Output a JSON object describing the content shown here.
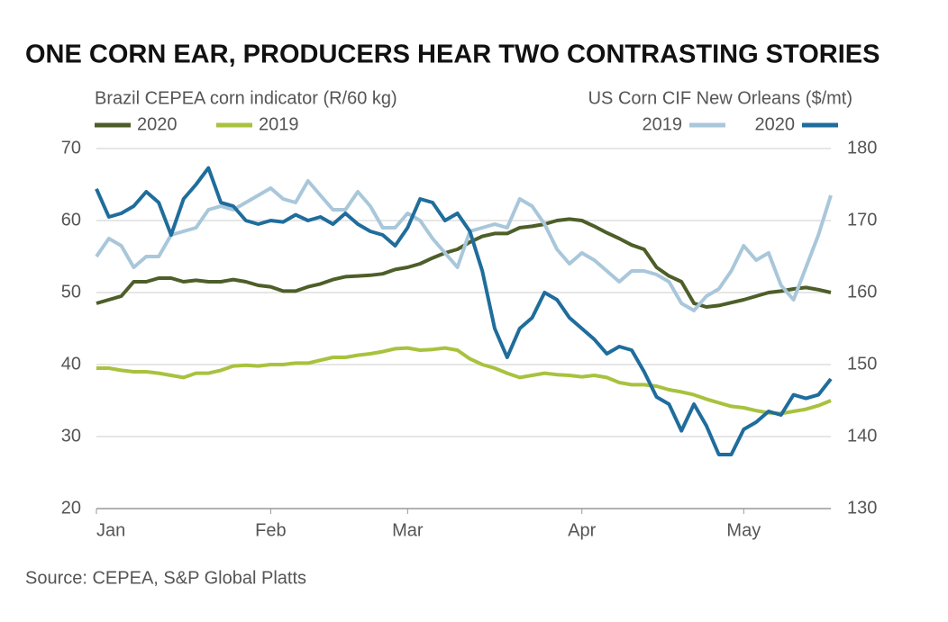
{
  "chart_data": {
    "type": "line",
    "title": "ONE CORN EAR, PRODUCERS HEAR TWO CONTRASTING STORIES",
    "ylabel": "Brazil CEPEA corn indicator (R/60 kg)",
    "y2label": "US Corn CIF New Orleans ($/mt)",
    "source": "Source: CEPEA, S&P Global Platts",
    "categories": [
      "Jan",
      null,
      null,
      null,
      null,
      null,
      null,
      null,
      null,
      null,
      null,
      null,
      null,
      null,
      "Feb",
      null,
      null,
      null,
      null,
      null,
      null,
      null,
      null,
      null,
      null,
      "Mar",
      null,
      null,
      null,
      null,
      null,
      null,
      null,
      null,
      null,
      null,
      null,
      null,
      null,
      "Apr",
      null,
      null,
      null,
      null,
      null,
      null,
      null,
      null,
      null,
      null,
      null,
      null,
      "May",
      null,
      null,
      null,
      null,
      null,
      null,
      null
    ],
    "ylim": [
      20,
      70
    ],
    "yticks": [
      20,
      30,
      40,
      50,
      60,
      70
    ],
    "y2lim": [
      130,
      180
    ],
    "y2ticks": [
      130,
      140,
      150,
      160,
      170,
      180
    ],
    "grid": true,
    "series": [
      {
        "name": "2020",
        "color": "#4d5e29",
        "values": [
          48.5,
          49,
          49.5,
          51.5,
          51.5,
          52,
          52,
          51.5,
          51.7,
          51.5,
          51.5,
          51.8,
          51.5,
          51,
          50.8,
          50.2,
          50.2,
          50.8,
          51.2,
          51.8,
          52.2,
          52.3,
          52.4,
          52.6,
          53.2,
          53.5,
          54,
          54.8,
          55.5,
          56,
          57,
          57.8,
          58.2,
          58.2,
          59,
          59.2,
          59.5,
          60,
          60.2,
          60,
          59.2,
          58.3,
          57.5,
          56.6,
          56,
          53.5,
          52.3,
          51.5,
          48.5,
          48,
          48.2,
          48.6,
          49,
          49.5,
          50,
          50.2,
          50.5,
          50.7,
          50.4,
          50
        ]
      },
      {
        "name": "2019",
        "color": "#a8c23e",
        "values": [
          39.5,
          39.5,
          39.2,
          39,
          39,
          38.8,
          38.5,
          38.2,
          38.8,
          38.8,
          39.2,
          39.8,
          39.9,
          39.8,
          40,
          40,
          40.2,
          40.2,
          40.6,
          41,
          41,
          41.3,
          41.5,
          41.8,
          42.2,
          42.3,
          42,
          42.1,
          42.3,
          42,
          40.8,
          40,
          39.5,
          38.8,
          38.2,
          38.5,
          38.8,
          38.6,
          38.5,
          38.3,
          38.5,
          38.2,
          37.5,
          37.2,
          37.2,
          37,
          36.5,
          36.2,
          35.8,
          35.2,
          34.7,
          34.2,
          34,
          33.6,
          33.3,
          33.2,
          33.5,
          33.8,
          34.3,
          35
        ]
      },
      {
        "name": "2019",
        "color": "#a9c7da",
        "axis": "y2",
        "values": [
          165,
          167.5,
          166.5,
          163.5,
          165,
          165,
          168,
          168.5,
          169,
          171.5,
          172,
          171.5,
          172.5,
          173.5,
          174.5,
          173,
          172.5,
          175.5,
          173.5,
          171.5,
          171.5,
          174,
          172,
          169,
          169,
          171,
          170,
          167.5,
          165.5,
          163.5,
          168.5,
          169,
          169.5,
          169,
          173,
          172,
          169.5,
          166,
          164,
          165.5,
          164.5,
          163,
          161.5,
          163,
          163,
          162.5,
          161.5,
          158.5,
          157.5,
          159.5,
          160.5,
          163,
          166.5,
          164.5,
          165.5,
          161,
          159,
          163.5,
          168,
          173.5
        ]
      },
      {
        "name": "2020",
        "color": "#1f6d9c",
        "axis": "y2",
        "values": [
          174.4,
          170.5,
          171,
          172,
          174,
          172.5,
          168,
          173,
          175,
          177.3,
          172.5,
          172,
          170,
          169.5,
          170,
          169.8,
          170.8,
          170,
          170.5,
          169.5,
          171,
          169.5,
          168.5,
          168,
          166.5,
          169,
          173,
          172.5,
          170,
          171,
          168.5,
          163,
          155,
          151,
          155,
          156.5,
          160,
          159,
          156.5,
          155,
          153.5,
          151.5,
          152.5,
          152,
          149,
          145.5,
          144.5,
          140.8,
          144.5,
          141.5,
          137.5,
          137.5,
          141,
          142,
          143.5,
          143,
          145.8,
          145.3,
          145.8,
          148
        ]
      }
    ]
  }
}
